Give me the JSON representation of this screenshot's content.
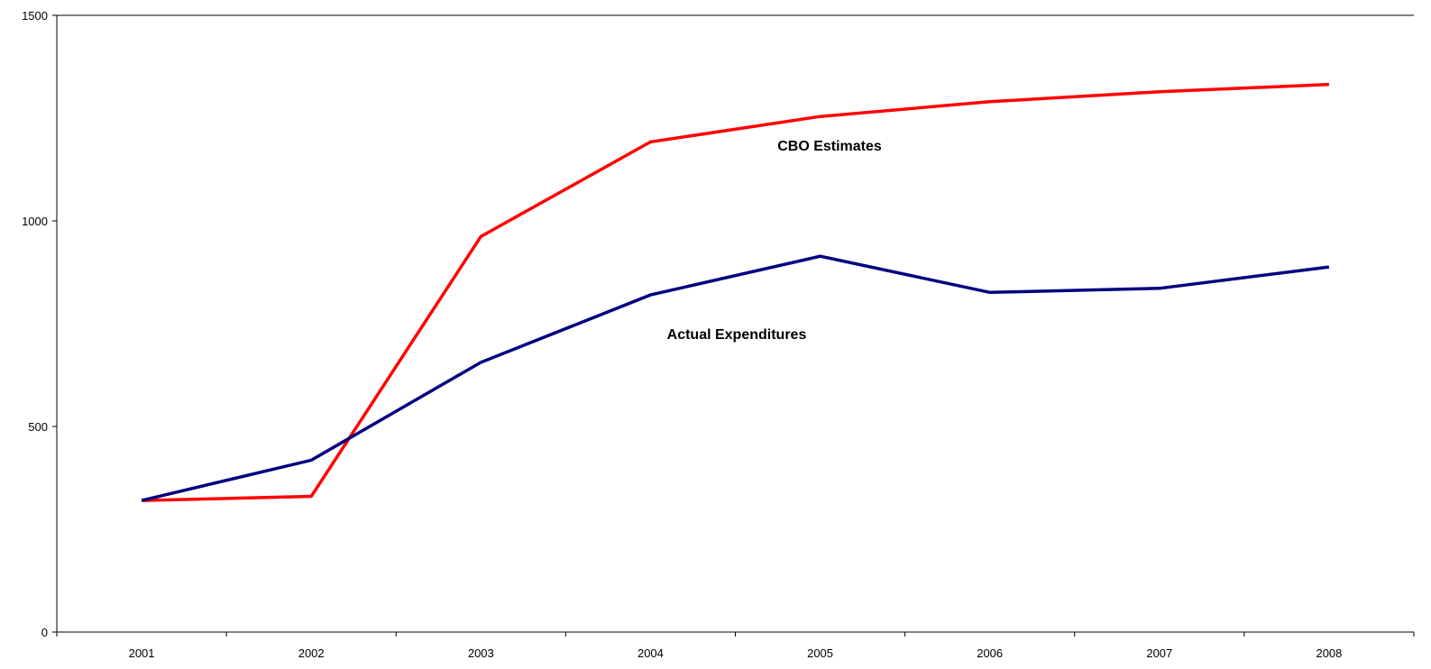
{
  "chart_data": {
    "type": "line",
    "title": "",
    "xlabel": "",
    "ylabel": "",
    "categories": [
      "2001",
      "2002",
      "2003",
      "2004",
      "2005",
      "2006",
      "2007",
      "2008"
    ],
    "ylim": [
      0,
      1500
    ],
    "yticks": [
      "0",
      "500",
      "1000",
      "1500"
    ],
    "grid": false,
    "legend": "none",
    "series": [
      {
        "name": "CBO Estimates",
        "color": "#ff0000",
        "values": [
          320,
          330,
          962,
          1192,
          1254,
          1290,
          1314,
          1332
        ]
      },
      {
        "name": "Actual Expenditures",
        "color": "#000080",
        "values": [
          320,
          418,
          656,
          820,
          914,
          826,
          836,
          888
        ]
      }
    ],
    "annotations": [
      {
        "text": "CBO Estimates",
        "series": 0
      },
      {
        "text": "Actual Expenditures",
        "series": 1
      }
    ]
  }
}
